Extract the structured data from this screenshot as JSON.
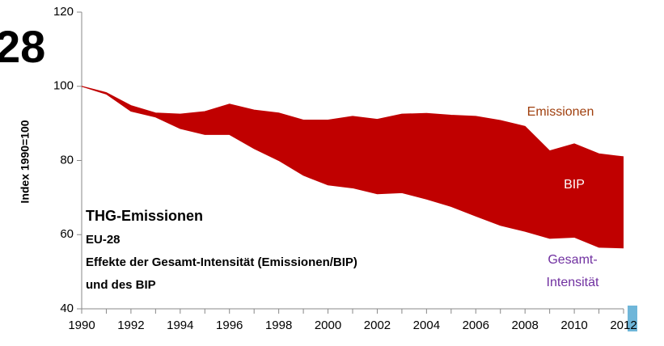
{
  "chart_data": {
    "type": "area",
    "heading": "28",
    "ylabel": "Index 1990=100",
    "x": [
      1990,
      1991,
      1992,
      1993,
      1994,
      1995,
      1996,
      1997,
      1998,
      1999,
      2000,
      2001,
      2002,
      2003,
      2004,
      2005,
      2006,
      2007,
      2008,
      2009,
      2010,
      2011,
      2012
    ],
    "series": [
      {
        "color": "#c00000",
        "values": [
          100,
          98.3,
          94.8,
          92.8,
          92.5,
          93.2,
          95.2,
          93.6,
          92.8,
          90.9,
          90.9,
          91.9,
          91.1,
          92.5,
          92.7,
          92.2,
          91.9,
          90.8,
          89.2,
          82.6,
          84.5,
          81.8,
          81
        ]
      },
      {
        "color": "#c00000",
        "values": [
          100,
          97.9,
          93.3,
          91.7,
          88.6,
          87,
          87,
          83.2,
          80,
          76,
          73.4,
          72.6,
          71,
          71.3,
          69.6,
          67.6,
          65,
          62.5,
          60.9,
          59,
          59.3,
          56.6,
          56.4
        ]
      }
    ],
    "xlim": [
      1990,
      2012
    ],
    "xticks": [
      1990,
      1992,
      1994,
      1996,
      1998,
      2000,
      2002,
      2004,
      2006,
      2008,
      2010,
      2012
    ],
    "ylim": [
      40,
      120
    ],
    "yticks": [
      40,
      60,
      80,
      100,
      120
    ],
    "annotations": {
      "title": "THG-Emissionen",
      "region": "EU-28",
      "subtitle": "Effekte der Gesamt-Intensität (Emissionen/BIP)",
      "subtitle2": "und des BIP"
    },
    "labels": {
      "upper": "Emissionen",
      "between": "BIP",
      "lower": [
        "Gesamt-",
        "Intensität"
      ]
    }
  }
}
